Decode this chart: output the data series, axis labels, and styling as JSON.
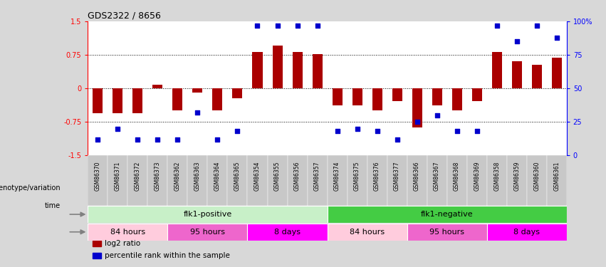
{
  "title": "GDS2322 / 8656",
  "samples": [
    "GSM86370",
    "GSM86371",
    "GSM86372",
    "GSM86373",
    "GSM86362",
    "GSM86363",
    "GSM86364",
    "GSM86365",
    "GSM86354",
    "GSM86355",
    "GSM86356",
    "GSM86357",
    "GSM86374",
    "GSM86375",
    "GSM86376",
    "GSM86377",
    "GSM86366",
    "GSM86367",
    "GSM86368",
    "GSM86369",
    "GSM86358",
    "GSM86359",
    "GSM86360",
    "GSM86361"
  ],
  "log2_ratio": [
    -0.55,
    -0.55,
    -0.55,
    0.08,
    -0.5,
    -0.1,
    -0.5,
    -0.22,
    0.82,
    0.95,
    0.82,
    0.76,
    -0.38,
    -0.38,
    -0.5,
    -0.28,
    -0.88,
    -0.38,
    -0.5,
    -0.28,
    0.82,
    0.6,
    0.52,
    0.68
  ],
  "percentile": [
    12,
    20,
    12,
    12,
    12,
    32,
    12,
    18,
    97,
    97,
    97,
    97,
    18,
    20,
    18,
    12,
    25,
    30,
    18,
    18,
    97,
    85,
    97,
    88
  ],
  "bar_color": "#AA0000",
  "dot_color": "#0000CC",
  "bg_color": "#D8D8D8",
  "plot_bg": "#ffffff",
  "ylim": [
    -1.5,
    1.5
  ],
  "y2lim": [
    0,
    100
  ],
  "yticks_left": [
    -1.5,
    -0.75,
    0,
    0.75,
    1.5
  ],
  "yticks_right": [
    0,
    25,
    50,
    75,
    100
  ],
  "dotted_lines": [
    0.75,
    0.0,
    -0.75
  ],
  "genotype_row": [
    {
      "label": "flk1-positive",
      "start": 0,
      "end": 12,
      "color": "#C8F0C8"
    },
    {
      "label": "flk1-negative",
      "start": 12,
      "end": 24,
      "color": "#44CC44"
    }
  ],
  "time_row": [
    {
      "label": "84 hours",
      "start": 0,
      "end": 4,
      "color": "#FFCCDD"
    },
    {
      "label": "95 hours",
      "start": 4,
      "end": 8,
      "color": "#EE66CC"
    },
    {
      "label": "8 days",
      "start": 8,
      "end": 12,
      "color": "#FF00FF"
    },
    {
      "label": "84 hours",
      "start": 12,
      "end": 16,
      "color": "#FFCCDD"
    },
    {
      "label": "95 hours",
      "start": 16,
      "end": 20,
      "color": "#EE66CC"
    },
    {
      "label": "8 days",
      "start": 20,
      "end": 24,
      "color": "#FF00FF"
    }
  ],
  "label_genotype": "genotype/variation",
  "label_time": "time",
  "legend": [
    {
      "label": "log2 ratio",
      "color": "#AA0000"
    },
    {
      "label": "percentile rank within the sample",
      "color": "#0000CC"
    }
  ]
}
